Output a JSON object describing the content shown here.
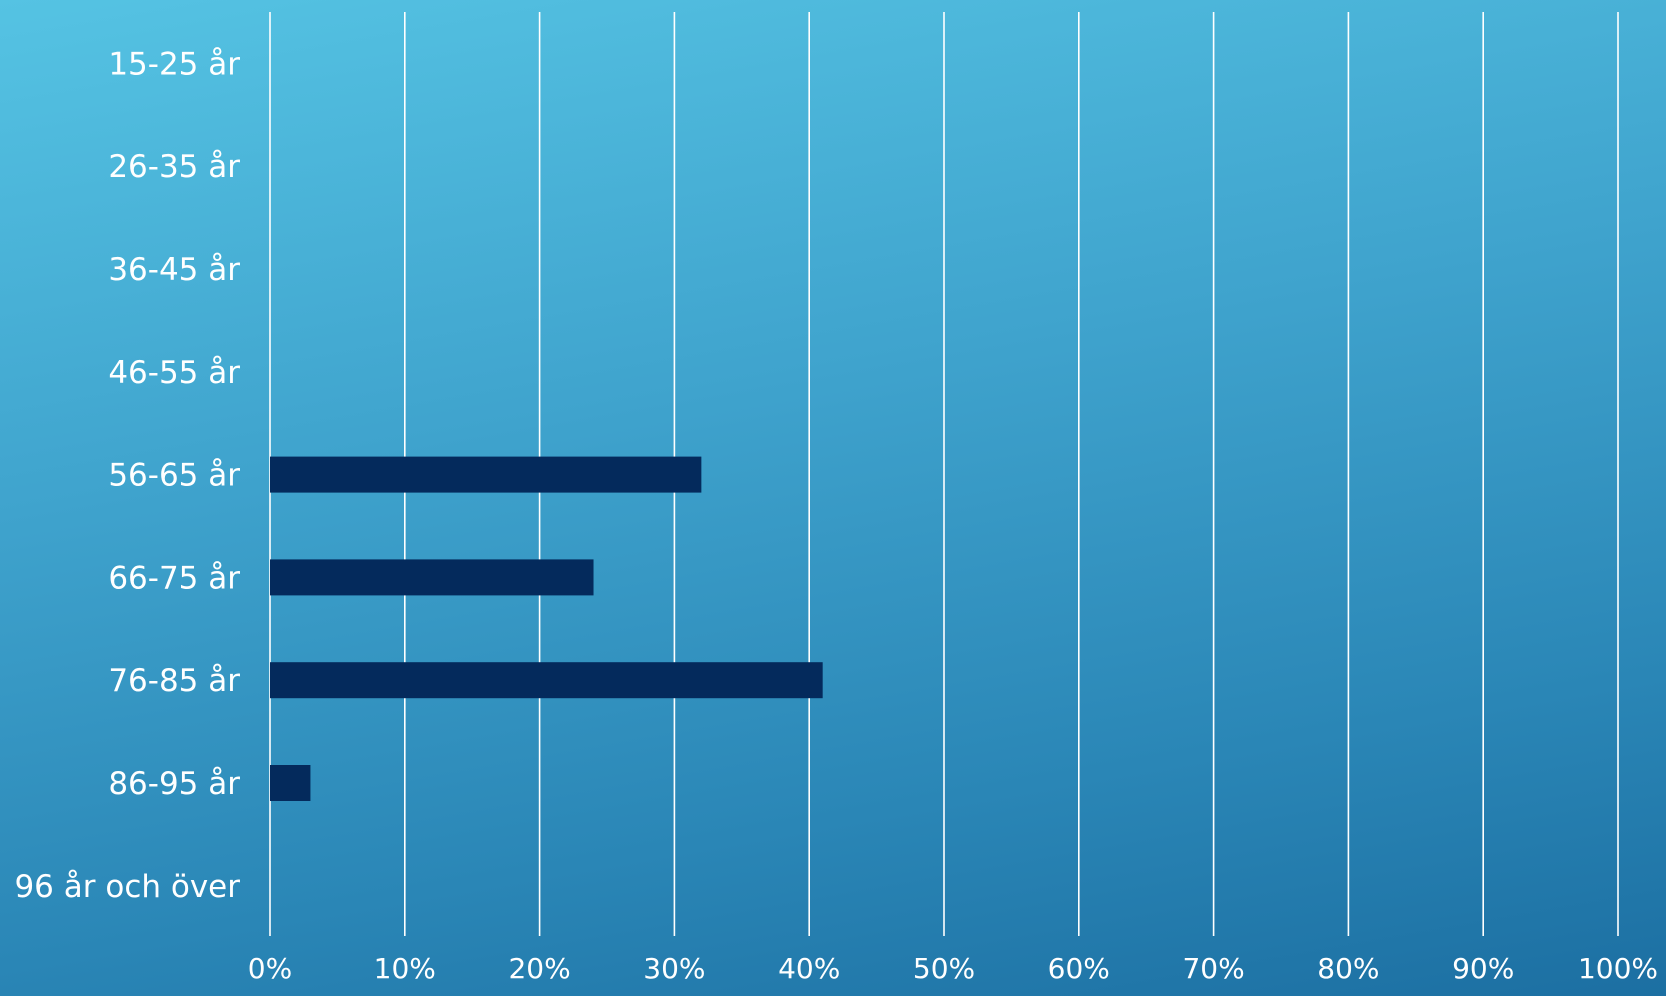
{
  "chart_data": {
    "type": "bar",
    "orientation": "horizontal",
    "categories": [
      "15-25 år",
      "26-35 år",
      "36-45 år",
      "46-55 år",
      "56-65 år",
      "66-75 år",
      "76-85 år",
      "86-95 år",
      "96 år och över"
    ],
    "values": [
      0,
      0,
      0,
      0,
      32,
      24,
      41,
      3,
      0
    ],
    "xlim": [
      0,
      100
    ],
    "x_ticks": [
      0,
      10,
      20,
      30,
      40,
      50,
      60,
      70,
      80,
      90,
      100
    ],
    "x_tick_labels": [
      "0%",
      "10%",
      "20%",
      "30%",
      "40%",
      "50%",
      "60%",
      "70%",
      "80%",
      "90%",
      "100%"
    ],
    "grid": true,
    "legend": "none",
    "bar_color": "#042a5c",
    "grid_color": "#ffffff",
    "text_color": "#ffffff"
  }
}
